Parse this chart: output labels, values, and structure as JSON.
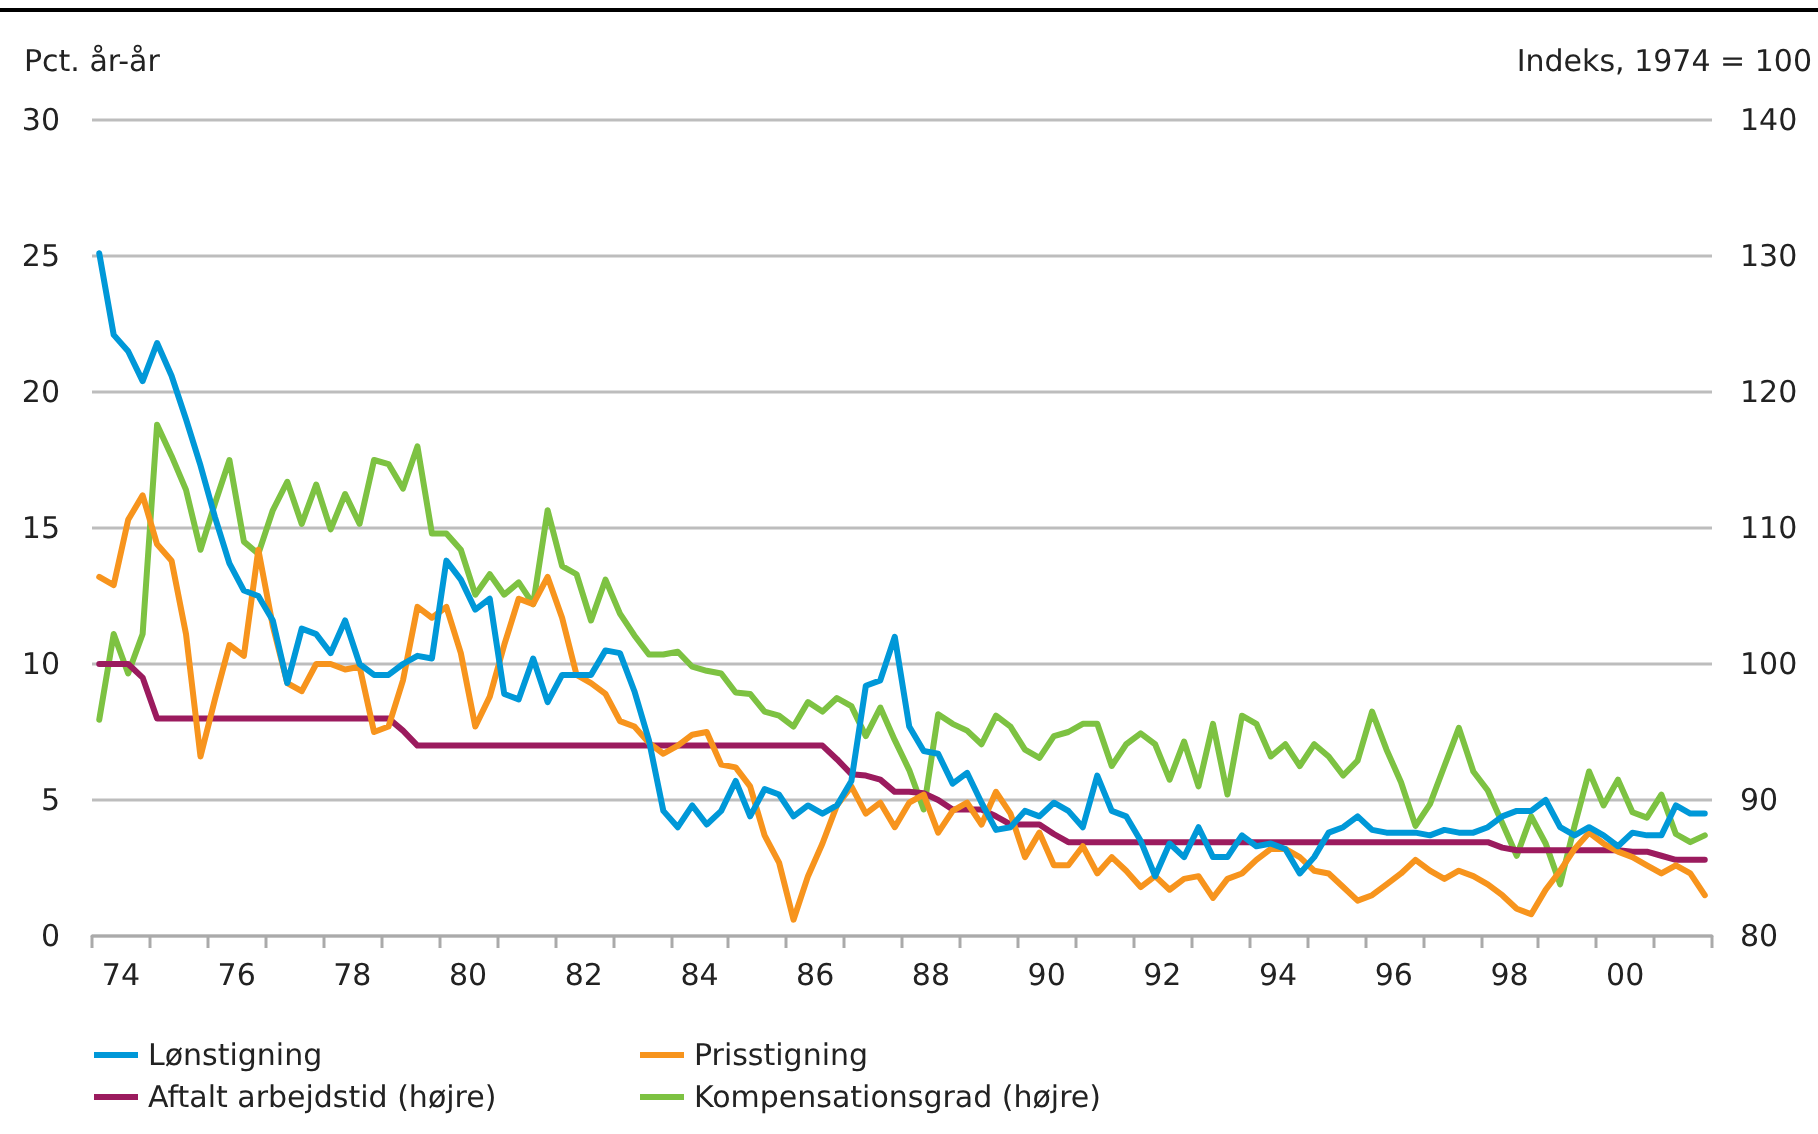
{
  "chart_data": {
    "type": "line",
    "ylabel": "Pct. år-år",
    "y2label": "Indeks, 1974 = 100",
    "x": [
      1973.625,
      1973.875,
      1974.125,
      1974.375,
      1974.625,
      1974.875,
      1975.125,
      1975.375,
      1975.625,
      1975.875,
      1976.125,
      1976.375,
      1976.625,
      1976.875,
      1977.125,
      1977.375,
      1977.625,
      1977.875,
      1978.125,
      1978.375,
      1978.625,
      1978.875,
      1979.125,
      1979.375,
      1979.625,
      1979.875,
      1980.125,
      1980.375,
      1980.625,
      1980.875,
      1981.125,
      1981.375,
      1981.625,
      1981.875,
      1982.125,
      1982.375,
      1982.625,
      1982.875,
      1983.125,
      1983.375,
      1983.625,
      1983.875,
      1984.125,
      1984.375,
      1984.625,
      1984.875,
      1985.125,
      1985.375,
      1985.625,
      1985.875,
      1986.125,
      1986.375,
      1986.625,
      1986.875,
      1987.125,
      1987.375,
      1987.625,
      1987.875,
      1988.125,
      1988.375,
      1988.625,
      1988.875,
      1989.125,
      1989.375,
      1989.625,
      1989.875,
      1990.125,
      1990.375,
      1990.625,
      1990.875,
      1991.125,
      1991.375,
      1991.625,
      1991.875,
      1992.125,
      1992.375,
      1992.625,
      1992.875,
      1993.125,
      1993.375,
      1993.625,
      1993.875,
      1994.125,
      1994.375,
      1994.625,
      1994.875,
      1995.125,
      1995.375,
      1995.625,
      1995.875,
      1996.125,
      1996.375,
      1996.625,
      1996.875,
      1997.125,
      1997.375,
      1997.625,
      1997.875,
      1998.125,
      1998.375,
      1998.625,
      1998.875,
      1999.125,
      1999.375,
      1999.625,
      1999.875,
      2000.125,
      2000.375,
      2000.625,
      2000.875,
      2001.125,
      2001.375
    ],
    "series": [
      {
        "name": "Lønstigning",
        "color": "#0098d8",
        "values": [
          25.1,
          22.1,
          21.5,
          20.4,
          21.8,
          20.6,
          19.0,
          17.3,
          15.4,
          13.7,
          12.7,
          12.5,
          11.6,
          9.3,
          11.3,
          11.1,
          10.4,
          11.6,
          10.0,
          9.6,
          9.6,
          10.0,
          10.3,
          10.2,
          13.8,
          13.1,
          12.0,
          12.4,
          8.9,
          8.7,
          10.2,
          8.6,
          9.6,
          9.6,
          9.6,
          10.5,
          10.4,
          9.0,
          7.2,
          4.6,
          4.0,
          4.8,
          4.1,
          4.6,
          5.7,
          4.4,
          5.4,
          5.2,
          4.4,
          4.8,
          4.5,
          4.8,
          5.7,
          9.2,
          9.4,
          11.0,
          7.7,
          6.8,
          6.7,
          5.6,
          6.0,
          4.9,
          3.9,
          4.0,
          4.6,
          4.4,
          4.9,
          4.6,
          4.0,
          5.9,
          4.6,
          4.4,
          3.5,
          2.2,
          3.4,
          2.9,
          4.0,
          2.9,
          2.9,
          3.7,
          3.3,
          3.4,
          3.2,
          2.3,
          2.9,
          3.8,
          4.0,
          4.4,
          3.9,
          3.8,
          3.8,
          3.8,
          3.7,
          3.9,
          3.8,
          3.8,
          4.0,
          4.4,
          4.6,
          4.6,
          5.0,
          4.0,
          3.7,
          4.0,
          3.7,
          3.3,
          3.8,
          3.7,
          3.7,
          4.8,
          4.5,
          4.5
        ]
      },
      {
        "name": "Prisstigning",
        "color": "#f7941d",
        "values": [
          13.2,
          12.9,
          15.3,
          16.2,
          14.4,
          13.8,
          11.1,
          6.6,
          8.7,
          10.7,
          10.3,
          14.2,
          11.4,
          9.3,
          9.0,
          10.0,
          10.0,
          9.8,
          9.9,
          7.5,
          7.7,
          9.4,
          12.1,
          11.7,
          12.1,
          10.4,
          7.7,
          8.8,
          10.7,
          12.4,
          12.2,
          13.2,
          11.7,
          9.6,
          9.3,
          8.9,
          7.9,
          7.7,
          7.1,
          6.7,
          7.0,
          7.4,
          7.5,
          6.3,
          6.2,
          5.5,
          3.7,
          2.7,
          0.6,
          2.2,
          3.4,
          4.8,
          5.5,
          4.5,
          4.9,
          4.0,
          4.9,
          5.2,
          3.8,
          4.6,
          4.9,
          4.1,
          5.3,
          4.5,
          2.9,
          3.8,
          2.6,
          2.6,
          3.3,
          2.3,
          2.9,
          2.4,
          1.8,
          2.2,
          1.7,
          2.1,
          2.2,
          1.4,
          2.1,
          2.3,
          2.8,
          3.2,
          3.2,
          2.9,
          2.4,
          2.3,
          1.8,
          1.3,
          1.5,
          1.9,
          2.3,
          2.8,
          2.4,
          2.1,
          2.4,
          2.2,
          1.9,
          1.5,
          1.0,
          0.8,
          1.7,
          2.4,
          3.2,
          3.8,
          3.4,
          3.1,
          2.9,
          2.6,
          2.3,
          2.6,
          2.3,
          1.5
        ]
      },
      {
        "name": "Aftalt arbejdstid (højre)",
        "color": "#9b1b5e",
        "axis": "y2",
        "values": [
          100,
          100,
          100,
          99.0,
          96.0,
          96.0,
          96.0,
          96.0,
          96.0,
          96.0,
          96.0,
          96.0,
          96.0,
          96.0,
          96.0,
          96.0,
          96.0,
          96.0,
          96.0,
          96.0,
          96.0,
          95.1,
          94.0,
          94.0,
          94.0,
          94.0,
          94.0,
          94.0,
          94.0,
          94.0,
          94.0,
          94.0,
          94.0,
          94.0,
          94.0,
          94.0,
          94.0,
          94.0,
          94.0,
          94.0,
          94.0,
          94.0,
          94.0,
          94.0,
          94.0,
          94.0,
          94.0,
          94.0,
          94.0,
          94.0,
          94.0,
          93.0,
          91.9,
          91.8,
          91.5,
          90.6,
          90.6,
          90.5,
          90.0,
          89.3,
          89.3,
          89.3,
          88.8,
          88.2,
          88.2,
          88.2,
          87.5,
          86.9,
          86.9,
          86.9,
          86.9,
          86.9,
          86.9,
          86.9,
          86.9,
          86.9,
          86.9,
          86.9,
          86.9,
          86.9,
          86.9,
          86.9,
          86.9,
          86.9,
          86.9,
          86.9,
          86.9,
          86.9,
          86.9,
          86.9,
          86.9,
          86.9,
          86.9,
          86.9,
          86.9,
          86.9,
          86.9,
          86.5,
          86.3,
          86.3,
          86.3,
          86.3,
          86.3,
          86.3,
          86.3,
          86.3,
          86.2,
          86.2,
          85.9,
          85.6,
          85.6,
          85.6
        ]
      },
      {
        "name": "Kompensationsgrad (højre)",
        "color": "#7dc242",
        "axis": "y2",
        "values": [
          95.9,
          102.2,
          99.3,
          102.2,
          117.6,
          115.3,
          112.8,
          108.4,
          111.8,
          115.0,
          109.0,
          108.1,
          111.3,
          113.4,
          110.3,
          113.2,
          109.9,
          112.5,
          110.3,
          115.0,
          114.7,
          112.9,
          116.0,
          109.6,
          109.6,
          108.4,
          105.1,
          106.6,
          105.1,
          106.0,
          104.4,
          111.3,
          107.2,
          106.6,
          103.2,
          106.2,
          103.7,
          102.1,
          100.7,
          100.7,
          100.9,
          99.8,
          99.5,
          99.3,
          97.9,
          97.8,
          96.5,
          96.2,
          95.4,
          97.2,
          96.5,
          97.5,
          96.9,
          94.7,
          96.8,
          94.4,
          92.2,
          89.3,
          96.3,
          95.6,
          95.1,
          94.1,
          96.2,
          95.4,
          93.7,
          93.1,
          94.7,
          95.0,
          95.6,
          95.6,
          92.5,
          94.1,
          94.9,
          94.1,
          91.5,
          94.3,
          91.0,
          95.6,
          90.4,
          96.2,
          95.6,
          93.2,
          94.1,
          92.5,
          94.1,
          93.2,
          91.8,
          92.9,
          96.5,
          93.7,
          91.3,
          88.1,
          89.7,
          92.5,
          95.3,
          92.1,
          90.7,
          88.3,
          85.9,
          88.8,
          86.8,
          83.8,
          88.1,
          92.1,
          89.6,
          91.5,
          89.1,
          88.7,
          90.4,
          87.5,
          86.9,
          87.4
        ]
      }
    ],
    "xlim": [
      1973.5,
      2001.5
    ],
    "xticks": [
      {
        "value": 1973.5,
        "label": null
      },
      {
        "value": 1974.5,
        "label": null
      },
      {
        "value": 1975.5,
        "label": null
      },
      {
        "value": 1976.5,
        "label": null
      },
      {
        "value": 1977.5,
        "label": null
      },
      {
        "value": 1978.5,
        "label": null
      },
      {
        "value": 1979.5,
        "label": null
      },
      {
        "value": 1980.5,
        "label": null
      },
      {
        "value": 1981.5,
        "label": null
      },
      {
        "value": 1982.5,
        "label": null
      },
      {
        "value": 1983.5,
        "label": null
      },
      {
        "value": 1984.5,
        "label": null
      },
      {
        "value": 1985.5,
        "label": null
      },
      {
        "value": 1986.5,
        "label": null
      },
      {
        "value": 1987.5,
        "label": null
      },
      {
        "value": 1988.5,
        "label": null
      },
      {
        "value": 1989.5,
        "label": null
      },
      {
        "value": 1990.5,
        "label": null
      },
      {
        "value": 1991.5,
        "label": null
      },
      {
        "value": 1992.5,
        "label": null
      },
      {
        "value": 1993.5,
        "label": null
      },
      {
        "value": 1994.5,
        "label": null
      },
      {
        "value": 1995.5,
        "label": null
      },
      {
        "value": 1996.5,
        "label": null
      },
      {
        "value": 1997.5,
        "label": null
      },
      {
        "value": 1998.5,
        "label": null
      },
      {
        "value": 1999.5,
        "label": null
      },
      {
        "value": 2000.5,
        "label": null
      },
      {
        "value": 2001.5,
        "label": null
      },
      {
        "value": 1974,
        "label": "74"
      },
      {
        "value": 1976,
        "label": "76"
      },
      {
        "value": 1978,
        "label": "78"
      },
      {
        "value": 1980,
        "label": "80"
      },
      {
        "value": 1982,
        "label": "82"
      },
      {
        "value": 1984,
        "label": "84"
      },
      {
        "value": 1986,
        "label": "86"
      },
      {
        "value": 1988,
        "label": "88"
      },
      {
        "value": 1990,
        "label": "90"
      },
      {
        "value": 1992,
        "label": "92"
      },
      {
        "value": 1994,
        "label": "94"
      },
      {
        "value": 1996,
        "label": "96"
      },
      {
        "value": 1998,
        "label": "98"
      },
      {
        "value": 2000,
        "label": "00"
      }
    ],
    "ylim": [
      0,
      30
    ],
    "yticks": [
      0,
      5,
      10,
      15,
      20,
      25,
      30
    ],
    "y2lim": [
      80,
      140
    ],
    "y2ticks": [
      80,
      90,
      100,
      110,
      120,
      130,
      140
    ],
    "grid": "y",
    "legend": "bottom",
    "marker": "none",
    "line_style": "solid"
  }
}
